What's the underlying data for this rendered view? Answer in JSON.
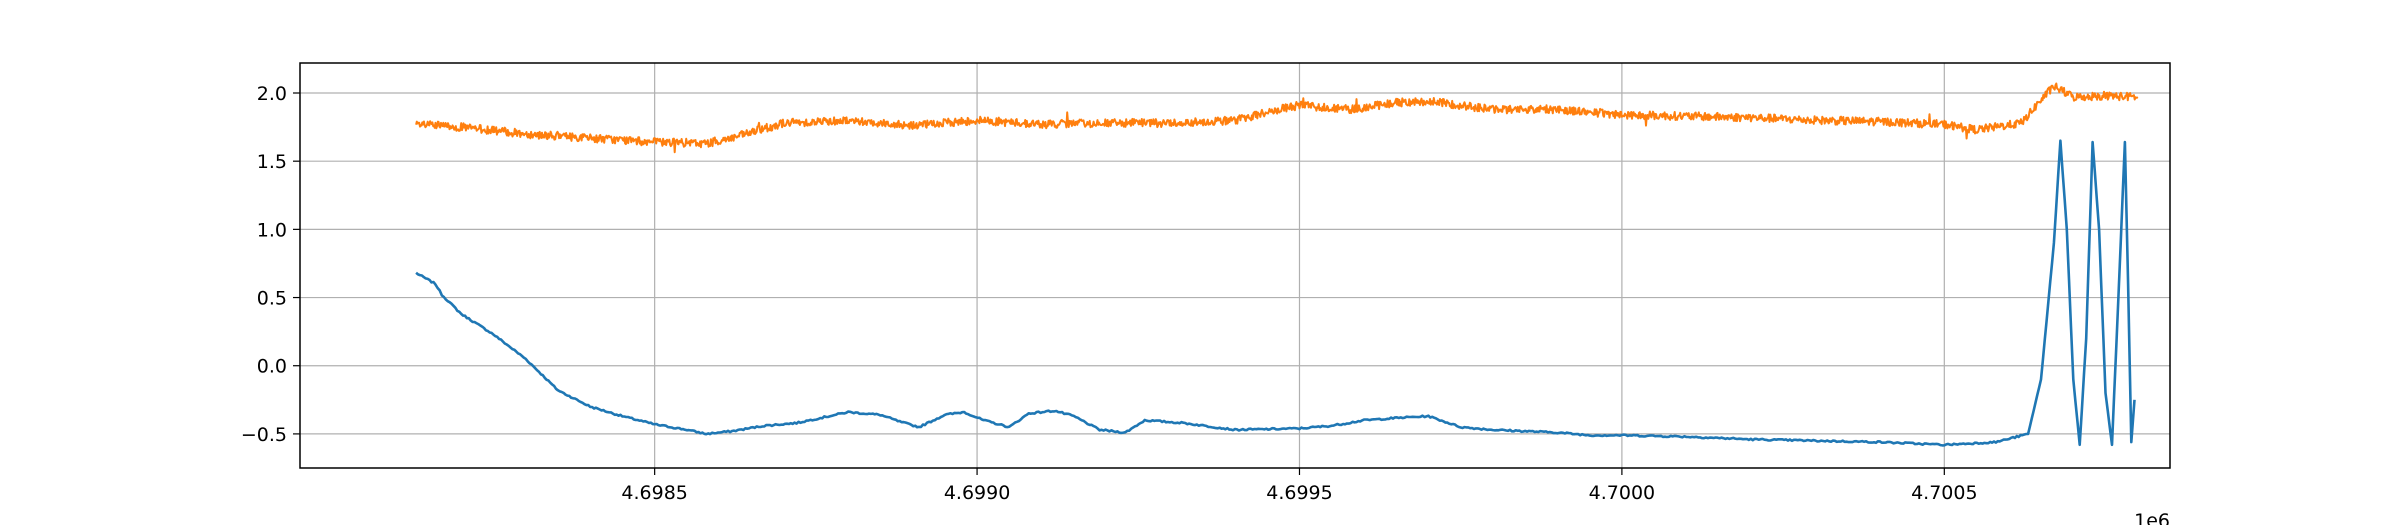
{
  "chart_data": {
    "type": "line",
    "title": "",
    "xlabel": "",
    "ylabel": "",
    "x_offset_label": "1e6",
    "xlim": [
      4.69795,
      4.70085
    ],
    "ylim": [
      -0.75,
      2.22
    ],
    "grid": true,
    "legend": "none",
    "x_ticks": [
      4.6985,
      4.699,
      4.6995,
      4.7,
      4.7005
    ],
    "x_tick_labels": [
      "4.6985",
      "4.6990",
      "4.6995",
      "4.7000",
      "4.7005"
    ],
    "y_ticks": [
      -0.5,
      0.0,
      0.5,
      1.0,
      1.5,
      2.0
    ],
    "y_tick_labels": [
      "−0.5",
      "0.0",
      "0.5",
      "1.0",
      "1.5",
      "2.0"
    ],
    "series": [
      {
        "color": "#1f77b4",
        "x": [
          4.69813,
          4.69816,
          4.69817,
          4.6982,
          4.69825,
          4.6983,
          4.69835,
          4.6984,
          4.69845,
          4.6985,
          4.69855,
          4.69858,
          4.69862,
          4.69867,
          4.69872,
          4.69876,
          4.6988,
          4.69885,
          4.69888,
          4.69891,
          4.69895,
          4.69898,
          4.69901,
          4.69905,
          4.69908,
          4.69912,
          4.69915,
          4.69919,
          4.69923,
          4.69926,
          4.69932,
          4.6994,
          4.6995,
          4.69955,
          4.6996,
          4.69966,
          4.6997,
          4.69975,
          4.6998,
          4.69985,
          4.6999,
          4.69995,
          4.7,
          4.7001,
          4.7002,
          4.7003,
          4.7004,
          4.7005,
          4.70058,
          4.70063,
          4.70065,
          4.70067,
          4.70068,
          4.70069,
          4.7007,
          4.70071,
          4.70072,
          4.70073,
          4.70074,
          4.70075,
          4.70076,
          4.70077,
          4.70078,
          4.700785,
          4.70079,
          4.700795
        ],
        "y": [
          0.68,
          0.6,
          0.52,
          0.38,
          0.23,
          0.05,
          -0.18,
          -0.3,
          -0.37,
          -0.43,
          -0.47,
          -0.5,
          -0.48,
          -0.44,
          -0.42,
          -0.38,
          -0.34,
          -0.36,
          -0.41,
          -0.45,
          -0.36,
          -0.34,
          -0.4,
          -0.45,
          -0.35,
          -0.33,
          -0.37,
          -0.47,
          -0.49,
          -0.4,
          -0.42,
          -0.47,
          -0.46,
          -0.44,
          -0.4,
          -0.38,
          -0.37,
          -0.45,
          -0.47,
          -0.48,
          -0.49,
          -0.51,
          -0.51,
          -0.52,
          -0.54,
          -0.55,
          -0.56,
          -0.58,
          -0.56,
          -0.5,
          -0.1,
          0.9,
          1.65,
          1.0,
          -0.1,
          -0.58,
          0.2,
          1.64,
          1.0,
          -0.2,
          -0.58,
          0.5,
          1.64,
          0.6,
          -0.56,
          -0.25
        ]
      },
      {
        "color": "#ff7f0e",
        "x": [
          4.69813,
          4.6982,
          4.6983,
          4.6984,
          4.6985,
          4.69858,
          4.69862,
          4.6987,
          4.6988,
          4.6989,
          4.699,
          4.6991,
          4.6992,
          4.6993,
          4.6994,
          4.69945,
          4.6995,
          4.69958,
          4.69965,
          4.6997,
          4.69975,
          4.6998,
          4.6999,
          4.7,
          4.7001,
          4.7002,
          4.7003,
          4.7004,
          4.7005,
          4.70055,
          4.70062,
          4.70065,
          4.70067,
          4.7007,
          4.70075,
          4.7008
        ],
        "y": [
          1.77,
          1.75,
          1.7,
          1.67,
          1.64,
          1.63,
          1.67,
          1.78,
          1.8,
          1.76,
          1.8,
          1.77,
          1.78,
          1.78,
          1.8,
          1.86,
          1.91,
          1.88,
          1.93,
          1.94,
          1.91,
          1.88,
          1.88,
          1.84,
          1.83,
          1.82,
          1.8,
          1.79,
          1.77,
          1.73,
          1.78,
          1.95,
          2.05,
          1.97,
          1.98,
          1.97
        ]
      }
    ]
  }
}
